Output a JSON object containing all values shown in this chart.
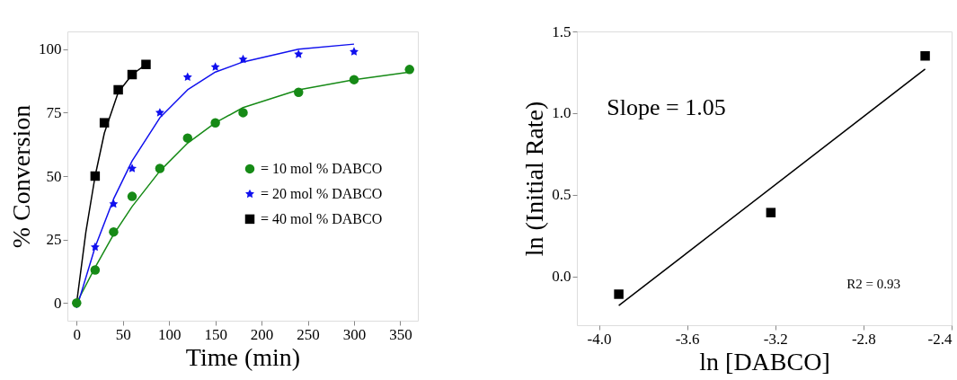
{
  "chart_data": [
    {
      "type": "scatter",
      "xlabel": "Time (min)",
      "ylabel": "% Conversion",
      "xlim": [
        -10,
        369
      ],
      "ylim": [
        -7,
        107
      ],
      "xticks": [
        0,
        50,
        100,
        150,
        200,
        250,
        300,
        350
      ],
      "yticks": [
        0,
        25,
        50,
        75,
        100
      ],
      "grid": false,
      "legend": "right",
      "series": [
        {
          "name": "= 10 mol % DABCO",
          "color": "#168a16",
          "marker": "circle",
          "x": [
            0,
            20,
            40,
            60,
            90,
            120,
            150,
            180,
            240,
            300,
            360
          ],
          "values": [
            0,
            13,
            28,
            42,
            53,
            65,
            71,
            75,
            83,
            88,
            92
          ]
        },
        {
          "name": "= 20 mol % DABCO",
          "color": "#1010ee",
          "marker": "star",
          "x": [
            20,
            40,
            60,
            90,
            120,
            150,
            180,
            240,
            300
          ],
          "values": [
            22,
            39,
            53,
            75,
            89,
            93,
            96,
            98,
            99
          ]
        },
        {
          "name": "= 40 mol % DABCO",
          "color": "#000000",
          "marker": "square",
          "x": [
            20,
            30,
            45,
            60,
            75
          ],
          "values": [
            50,
            71,
            84,
            90,
            94
          ]
        },
        {
          "type": "line",
          "color": "#168a16",
          "x": [
            0,
            20,
            40,
            60,
            90,
            120,
            150,
            180,
            240,
            300,
            360
          ],
          "values": [
            0,
            14,
            27,
            38,
            52,
            63,
            71,
            77,
            84,
            88,
            91
          ]
        },
        {
          "type": "line",
          "color": "#1010ee",
          "x": [
            0,
            20,
            40,
            60,
            90,
            120,
            150,
            180,
            240,
            300
          ],
          "values": [
            -2,
            22,
            41,
            56,
            73,
            84,
            91,
            95,
            100,
            102
          ]
        },
        {
          "type": "line",
          "color": "#000000",
          "x": [
            0,
            10,
            20,
            30,
            45,
            60,
            75
          ],
          "values": [
            0,
            28,
            50,
            67,
            83,
            90,
            94
          ]
        }
      ]
    },
    {
      "type": "scatter",
      "xlabel": "ln [DABCO]",
      "ylabel": "ln (Initial Rate)",
      "xlim": [
        -4.1,
        -2.4
      ],
      "ylim": [
        -0.3,
        1.5
      ],
      "xticks": [
        {
          "value": -4.0,
          "label": "-4.0"
        },
        -3.6,
        -3.2,
        -2.8,
        -2.4
      ],
      "yticks": [
        {
          "value": 0.0,
          "label": "0.0"
        },
        0.5,
        {
          "value": 1.0,
          "label": "1.0"
        },
        1.5
      ],
      "grid": false,
      "legend": false,
      "annotations": [
        "Slope = 1.05",
        "R2 = 0.93"
      ],
      "series": [
        {
          "color": "#000000",
          "marker": "square",
          "x": [
            -3.91,
            -3.22,
            -2.52
          ],
          "values": [
            -0.11,
            0.39,
            1.35
          ]
        },
        {
          "type": "line",
          "color": "#000000",
          "x": [
            -3.91,
            -2.52
          ],
          "values": [
            -0.18,
            1.27
          ]
        }
      ]
    }
  ]
}
